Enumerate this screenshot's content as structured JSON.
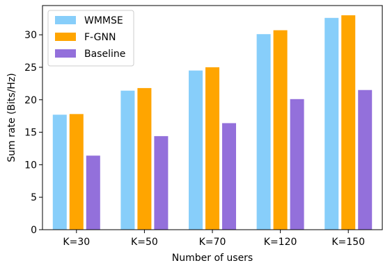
{
  "chart_data": {
    "type": "bar",
    "title": "",
    "xlabel": "Number of users",
    "ylabel": "Sum rate (Bits/Hz)",
    "categories": [
      "K=30",
      "K=50",
      "K=70",
      "K=120",
      "K=150"
    ],
    "series": [
      {
        "name": "WMMSE",
        "color": "#87CEFA",
        "values": [
          17.7,
          21.4,
          24.5,
          30.1,
          32.6
        ]
      },
      {
        "name": "F-GNN",
        "color": "#FFA500",
        "values": [
          17.8,
          21.8,
          25.0,
          30.7,
          33.0
        ]
      },
      {
        "name": "Baseline",
        "color": "#9370DB",
        "values": [
          11.4,
          14.4,
          16.4,
          20.1,
          21.5
        ]
      }
    ],
    "ylim": [
      0,
      34.5
    ],
    "yticks": [
      0,
      5,
      10,
      15,
      20,
      25,
      30
    ],
    "grid": false,
    "legend_position": "top-left"
  }
}
